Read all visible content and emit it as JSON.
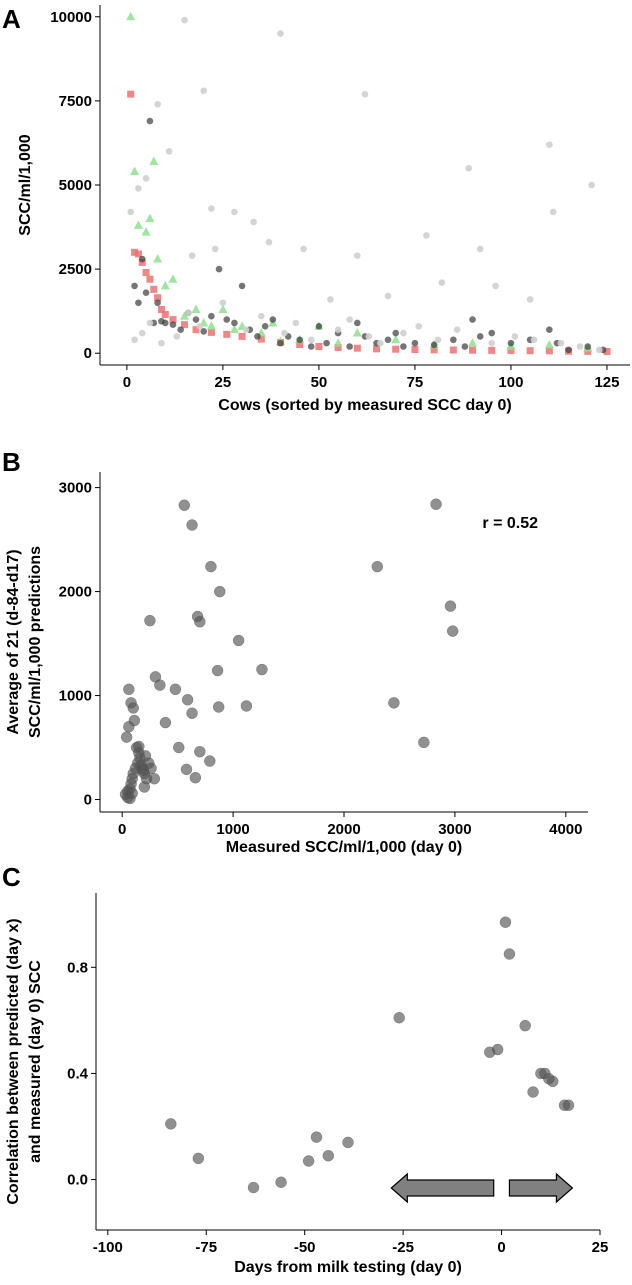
{
  "chart_data": [
    {
      "panel": "A",
      "type": "scatter",
      "xlabel": "Cows (sorted by measured SCC day 0)",
      "ylabel": "SCC/ml/1,000",
      "xlim": [
        -7,
        131
      ],
      "ylim": [
        -350,
        10350
      ],
      "xticks": [
        0,
        25,
        50,
        75,
        100,
        125
      ],
      "yticks": [
        0,
        2500,
        5000,
        7500,
        10000
      ],
      "legend": "none",
      "series": [
        {
          "color": "#f07070",
          "marker": "square",
          "x": [
            1,
            2,
            3,
            4,
            5,
            6,
            7,
            8,
            9,
            10,
            12,
            15,
            18,
            22,
            26,
            30,
            35,
            40,
            45,
            50,
            55,
            60,
            65,
            70,
            75,
            80,
            85,
            90,
            95,
            100,
            105,
            110,
            115,
            120,
            125
          ],
          "y": [
            7700,
            3000,
            2950,
            2700,
            2400,
            2200,
            1900,
            1650,
            1300,
            1150,
            1000,
            850,
            700,
            620,
            560,
            500,
            420,
            320,
            260,
            200,
            170,
            150,
            130,
            120,
            110,
            100,
            95,
            90,
            85,
            80,
            75,
            70,
            60,
            55,
            50
          ]
        },
        {
          "color": "#8ee08e",
          "marker": "triangle",
          "x": [
            1,
            2,
            3,
            5,
            6,
            7,
            8,
            10,
            12,
            15,
            18,
            20,
            22,
            25,
            28,
            30,
            35,
            38,
            40,
            45,
            50,
            55,
            60,
            70,
            80,
            90,
            100,
            110,
            120
          ],
          "y": [
            10000,
            5400,
            3800,
            3600,
            4000,
            5700,
            2800,
            2000,
            2200,
            1100,
            1300,
            900,
            800,
            1300,
            700,
            800,
            600,
            900,
            350,
            400,
            800,
            300,
            600,
            400,
            250,
            300,
            200,
            250,
            150
          ]
        },
        {
          "color": "#3a3a3a",
          "marker": "circle",
          "x": [
            2,
            3,
            4,
            5,
            6,
            7,
            8,
            9,
            10,
            12,
            14,
            16,
            18,
            20,
            22,
            24,
            26,
            28,
            30,
            32,
            34,
            36,
            38,
            40,
            42,
            45,
            48,
            50,
            52,
            55,
            58,
            60,
            62,
            65,
            68,
            70,
            72,
            75,
            80,
            85,
            88,
            90,
            92,
            95,
            100,
            105,
            110,
            112,
            115,
            120,
            124
          ],
          "y": [
            2000,
            1500,
            2800,
            1800,
            6900,
            900,
            1500,
            950,
            900,
            850,
            700,
            1200,
            1000,
            650,
            1100,
            2500,
            1000,
            900,
            2000,
            700,
            500,
            800,
            1000,
            300,
            500,
            400,
            200,
            800,
            300,
            600,
            200,
            900,
            500,
            300,
            400,
            600,
            200,
            300,
            250,
            400,
            200,
            1000,
            500,
            600,
            300,
            400,
            700,
            300,
            100,
            200,
            100
          ]
        },
        {
          "color": "#cfcfcf",
          "marker": "circle",
          "x": [
            1,
            3,
            5,
            8,
            11,
            15,
            17,
            20,
            22,
            23,
            28,
            33,
            37,
            40,
            46,
            53,
            60,
            62,
            68,
            78,
            82,
            89,
            92,
            96,
            105,
            110,
            111,
            121,
            2,
            4,
            6,
            9,
            13,
            16,
            19,
            25,
            31,
            35,
            41,
            44,
            48,
            55,
            58,
            63,
            66,
            72,
            76,
            81,
            86,
            95,
            101,
            106,
            113,
            118,
            123
          ],
          "y": [
            4200,
            4900,
            5200,
            7400,
            6000,
            9900,
            2900,
            7800,
            4300,
            3100,
            4200,
            3900,
            3300,
            9500,
            3100,
            1600,
            2900,
            7700,
            1700,
            3500,
            2100,
            5500,
            3100,
            2000,
            1600,
            6200,
            4200,
            5000,
            400,
            600,
            900,
            300,
            500,
            1200,
            800,
            1500,
            700,
            1100,
            600,
            900,
            400,
            700,
            1000,
            500,
            300,
            600,
            800,
            400,
            700,
            300,
            500,
            400,
            300,
            200,
            100
          ]
        }
      ]
    },
    {
      "panel": "B",
      "type": "scatter",
      "xlabel": "Measured SCC/ml/1,000 (day 0)",
      "ylabel_lines": [
        "Average of 21 (d-84-d17)",
        "SCC/ml/1,000 predictions"
      ],
      "xlim": [
        -200,
        4200
      ],
      "ylim": [
        -120,
        3150
      ],
      "xticks": [
        0,
        1000,
        2000,
        3000,
        4000
      ],
      "yticks": [
        0,
        1000,
        2000,
        3000
      ],
      "annotation": "r = 0.52",
      "series": [
        {
          "color": "#555555",
          "marker": "circle",
          "x": [
            560,
            630,
            800,
            880,
            680,
            700,
            1050,
            250,
            860,
            1260,
            480,
            1120,
            870,
            300,
            590,
            340,
            630,
            700,
            790,
            510,
            580,
            390,
            660,
            290,
            2300,
            2830,
            2960,
            2980,
            2450,
            2720,
            30,
            50,
            70,
            80,
            90,
            100,
            120,
            140,
            160,
            180,
            200,
            220,
            240,
            260,
            40,
            60,
            110,
            130,
            150,
            170,
            190,
            210,
            60,
            80,
            100,
            150,
            200,
            50,
            70,
            90
          ],
          "y": [
            2830,
            2640,
            2240,
            2000,
            1760,
            1710,
            1530,
            1720,
            1240,
            1250,
            1060,
            900,
            890,
            1180,
            960,
            1100,
            830,
            460,
            370,
            500,
            290,
            740,
            210,
            200,
            2240,
            2840,
            1860,
            1620,
            930,
            550,
            50,
            80,
            100,
            150,
            200,
            250,
            300,
            350,
            400,
            300,
            250,
            200,
            350,
            300,
            600,
            700,
            760,
            500,
            450,
            330,
            280,
            420,
            1060,
            930,
            880,
            510,
            120,
            20,
            10,
            60
          ]
        }
      ]
    },
    {
      "panel": "C",
      "type": "scatter",
      "xlabel": "Days from milk testing (day 0)",
      "ylabel_lines": [
        "Correlation between predicted (day x)",
        "and measured (day 0) SCC"
      ],
      "xlim": [
        -103,
        25
      ],
      "ylim": [
        -0.19,
        1.08
      ],
      "xticks": [
        -100,
        -75,
        -50,
        -25,
        0,
        25
      ],
      "yticks": [
        0.0,
        0.4,
        0.8
      ],
      "ytick_labels": [
        "0.0",
        "0.4",
        "0.8"
      ],
      "series": [
        {
          "color": "#555555",
          "marker": "circle",
          "x": [
            -84,
            -77,
            -63,
            -56,
            -49,
            -47,
            -44,
            -39,
            -26,
            -3,
            -1,
            1,
            2,
            6,
            8,
            10,
            11,
            12,
            13,
            16,
            17
          ],
          "y": [
            0.21,
            0.08,
            -0.03,
            -0.01,
            0.07,
            0.16,
            0.09,
            0.14,
            0.61,
            0.48,
            0.49,
            0.97,
            0.85,
            0.58,
            0.33,
            0.4,
            0.4,
            0.38,
            0.37,
            0.28,
            0.28
          ]
        }
      ],
      "arrows": [
        {
          "direction": "left",
          "from_x": -2,
          "to_x": -28
        },
        {
          "direction": "right",
          "from_x": 2,
          "to_x": 18
        }
      ]
    }
  ]
}
